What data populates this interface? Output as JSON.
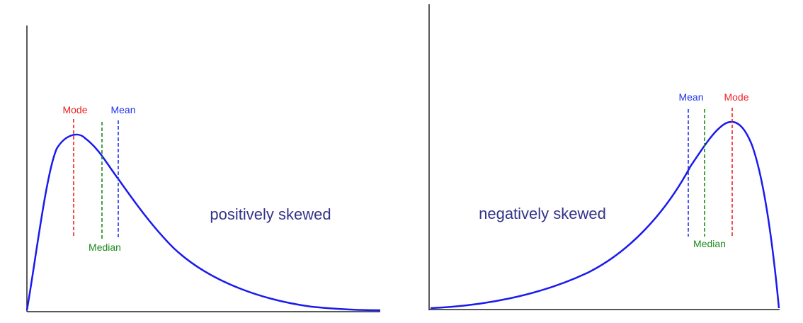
{
  "colors": {
    "curve": "#1a1aee",
    "mode": "#ee2222",
    "median": "#1a8a1a",
    "mean": "#2233ee",
    "caption": "#33338a",
    "axis": "#222222"
  },
  "chart_data": [
    {
      "type": "line",
      "caption": "positively skewed",
      "markers": [
        {
          "key": "mode",
          "label": "Mode"
        },
        {
          "key": "median",
          "label": "Median"
        },
        {
          "key": "mean",
          "label": "Mean"
        }
      ]
    },
    {
      "type": "line",
      "caption": "negatively skewed",
      "markers": [
        {
          "key": "mean",
          "label": "Mean"
        },
        {
          "key": "median",
          "label": "Median"
        },
        {
          "key": "mode",
          "label": "Mode"
        }
      ]
    }
  ]
}
